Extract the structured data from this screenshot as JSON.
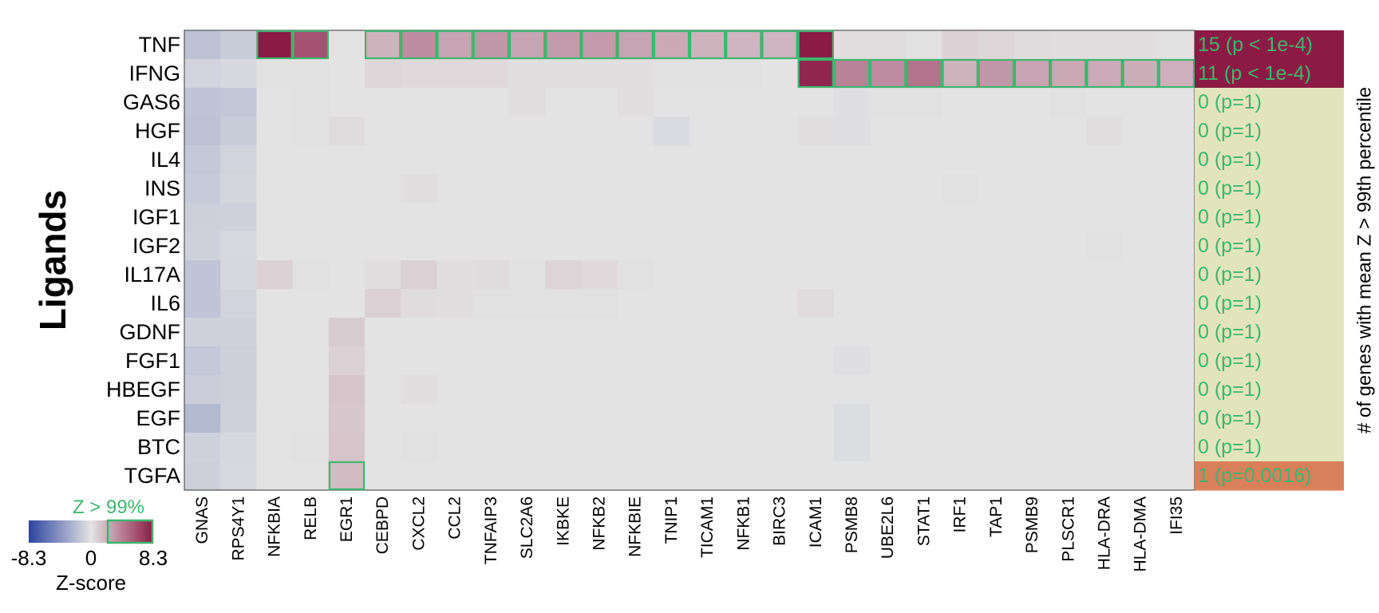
{
  "chart_data": {
    "type": "heatmap",
    "title": "",
    "ylabel": "Ligands",
    "side_label": "# of genes with mean Z > 99th percentile",
    "rows": [
      "TNF",
      "IFNG",
      "GAS6",
      "HGF",
      "IL4",
      "INS",
      "IGF1",
      "IGF2",
      "IL17A",
      "IL6",
      "GDNF",
      "FGF1",
      "HBEGF",
      "EGF",
      "BTC",
      "TGFA"
    ],
    "columns": [
      "GNAS",
      "RPS4Y1",
      "NFKBIA",
      "RELB",
      "EGR1",
      "CEBPD",
      "CXCL2",
      "CCL2",
      "TNFAIP3",
      "SLC2A6",
      "IKBKE",
      "NFKB2",
      "NFKBIE",
      "TNIP1",
      "TICAM1",
      "NFKB1",
      "BIRC3",
      "ICAM1",
      "PSMB8",
      "UBE2L6",
      "STAT1",
      "IRF1",
      "TAP1",
      "PSMB9",
      "PLSCR1",
      "HLA-DRA",
      "HLA-DMA",
      "IFI35"
    ],
    "values": [
      [
        -1.8,
        -1.2,
        8.3,
        6.0,
        0.0,
        2.0,
        3.5,
        2.6,
        3.2,
        2.6,
        3.0,
        3.0,
        2.6,
        2.4,
        2.0,
        1.9,
        1.9,
        8.3,
        0.2,
        0.2,
        0.1,
        0.7,
        0.5,
        0.3,
        0.2,
        0.2,
        0.2,
        0.1
      ],
      [
        -0.8,
        -0.6,
        0.1,
        0.1,
        0.0,
        0.5,
        0.4,
        0.4,
        0.4,
        0.2,
        0.2,
        0.2,
        0.2,
        0.1,
        0.1,
        0.1,
        0.0,
        7.8,
        4.0,
        3.6,
        4.6,
        2.0,
        3.2,
        2.6,
        2.4,
        2.3,
        2.2,
        2.1
      ],
      [
        -1.6,
        -1.5,
        0.0,
        0.1,
        0.0,
        0.0,
        0.0,
        0.0,
        0.0,
        0.2,
        0.0,
        0.0,
        0.2,
        0.0,
        0.0,
        0.0,
        0.0,
        0.0,
        -0.2,
        -0.1,
        0.1,
        0.0,
        0.0,
        0.0,
        -0.1,
        0.0,
        0.0,
        0.0
      ],
      [
        -1.8,
        -1.2,
        0.0,
        0.1,
        0.3,
        0.0,
        0.0,
        0.0,
        0.0,
        0.0,
        0.0,
        0.0,
        0.0,
        -0.4,
        0.0,
        0.0,
        0.0,
        0.2,
        -0.2,
        0.0,
        0.0,
        0.0,
        0.0,
        0.0,
        0.0,
        0.2,
        0.0,
        0.0
      ],
      [
        -1.4,
        -0.8,
        0.0,
        0.0,
        0.0,
        0.0,
        0.0,
        0.0,
        0.0,
        0.0,
        0.0,
        0.0,
        0.0,
        0.0,
        0.0,
        0.0,
        0.0,
        0.0,
        0.0,
        0.0,
        0.0,
        0.0,
        0.0,
        0.0,
        0.0,
        0.0,
        0.0,
        0.0
      ],
      [
        -1.3,
        -0.7,
        0.0,
        0.0,
        0.0,
        0.0,
        0.2,
        0.0,
        0.0,
        0.0,
        0.0,
        0.0,
        0.0,
        0.0,
        0.0,
        0.0,
        0.0,
        0.0,
        0.0,
        0.0,
        0.0,
        0.1,
        0.0,
        0.0,
        0.0,
        0.0,
        0.0,
        0.0
      ],
      [
        -1.0,
        -0.9,
        0.0,
        0.0,
        0.0,
        0.0,
        0.0,
        0.0,
        0.0,
        0.0,
        0.0,
        0.0,
        0.0,
        0.0,
        0.0,
        0.0,
        0.0,
        0.0,
        0.0,
        0.0,
        0.0,
        0.0,
        0.0,
        0.0,
        0.0,
        0.0,
        0.0,
        0.0
      ],
      [
        -0.9,
        -0.5,
        0.0,
        0.0,
        0.0,
        0.0,
        0.0,
        0.0,
        0.0,
        0.0,
        0.0,
        0.0,
        0.0,
        0.0,
        0.0,
        0.0,
        0.0,
        0.0,
        0.0,
        0.0,
        0.0,
        0.0,
        0.0,
        0.0,
        0.0,
        0.1,
        0.0,
        0.0
      ],
      [
        -1.6,
        -0.6,
        0.7,
        0.1,
        0.0,
        0.2,
        0.8,
        0.2,
        0.3,
        0.1,
        0.6,
        0.4,
        0.1,
        0.0,
        0.0,
        0.0,
        0.0,
        0.0,
        0.0,
        0.0,
        0.0,
        0.0,
        0.0,
        0.0,
        0.0,
        0.0,
        0.0,
        0.0
      ],
      [
        -1.6,
        -0.8,
        0.0,
        0.0,
        0.0,
        0.8,
        0.3,
        0.2,
        0.1,
        0.1,
        0.1,
        0.1,
        0.0,
        0.0,
        0.0,
        0.0,
        0.0,
        0.3,
        0.0,
        0.0,
        0.0,
        0.0,
        0.0,
        0.0,
        0.0,
        0.0,
        0.0,
        0.0
      ],
      [
        -0.9,
        -0.9,
        0.0,
        0.0,
        1.0,
        0.0,
        0.0,
        0.0,
        0.0,
        0.0,
        0.0,
        0.0,
        0.0,
        0.0,
        0.0,
        0.0,
        0.0,
        0.0,
        0.0,
        0.0,
        0.0,
        0.0,
        0.0,
        0.0,
        0.0,
        0.0,
        0.0,
        0.0
      ],
      [
        -1.4,
        -1.0,
        0.0,
        0.0,
        0.8,
        0.0,
        0.0,
        0.0,
        0.0,
        0.0,
        0.0,
        0.0,
        0.0,
        0.0,
        0.0,
        0.0,
        0.0,
        0.0,
        -0.2,
        0.0,
        0.0,
        0.0,
        0.0,
        0.0,
        0.0,
        0.0,
        0.0,
        0.0
      ],
      [
        -1.1,
        -1.0,
        0.0,
        0.0,
        1.2,
        0.0,
        0.2,
        0.0,
        0.0,
        0.0,
        0.0,
        0.0,
        0.0,
        0.0,
        0.0,
        0.0,
        0.0,
        0.0,
        0.0,
        0.0,
        0.0,
        0.0,
        0.0,
        0.0,
        0.0,
        0.0,
        0.0,
        0.0
      ],
      [
        -2.2,
        -0.9,
        0.0,
        0.0,
        1.1,
        0.0,
        0.0,
        0.0,
        0.0,
        0.0,
        0.0,
        0.0,
        0.0,
        0.0,
        0.0,
        0.0,
        0.0,
        0.0,
        -0.3,
        0.0,
        0.0,
        0.0,
        0.0,
        0.0,
        0.0,
        0.0,
        0.0,
        0.0
      ],
      [
        -0.9,
        -0.6,
        0.0,
        0.1,
        1.3,
        0.0,
        0.1,
        0.0,
        0.0,
        0.0,
        0.0,
        0.0,
        0.0,
        0.0,
        0.0,
        0.0,
        0.0,
        0.0,
        -0.3,
        0.0,
        0.0,
        0.0,
        0.0,
        0.0,
        0.0,
        0.0,
        0.0,
        0.0
      ],
      [
        -1.0,
        -0.5,
        0.0,
        0.0,
        1.6,
        0.0,
        0.0,
        0.0,
        0.0,
        0.0,
        0.0,
        0.0,
        0.0,
        0.0,
        0.0,
        0.0,
        0.0,
        0.0,
        0.0,
        0.0,
        0.0,
        0.0,
        0.0,
        0.0,
        0.0,
        0.0,
        0.0,
        0.0
      ]
    ],
    "highlighted": [
      {
        "row": "TNF",
        "columns": [
          "NFKBIA",
          "RELB",
          "CEBPD",
          "CXCL2",
          "CCL2",
          "TNFAIP3",
          "SLC2A6",
          "IKBKE",
          "NFKB2",
          "NFKBIE",
          "TNIP1",
          "TICAM1",
          "NFKB1",
          "BIRC3",
          "ICAM1"
        ]
      },
      {
        "row": "IFNG",
        "columns": [
          "ICAM1",
          "PSMB8",
          "UBE2L6",
          "STAT1",
          "IRF1",
          "TAP1",
          "PSMB9",
          "PLSCR1",
          "HLA-DRA",
          "HLA-DMA",
          "IFI35"
        ]
      },
      {
        "row": "TGFA",
        "columns": [
          "EGR1"
        ]
      }
    ],
    "summary": [
      {
        "row": "TNF",
        "label": "15 (p < 1e-4)",
        "color": "#8b1a44"
      },
      {
        "row": "IFNG",
        "label": "11 (p < 1e-4)",
        "color": "#8b1a44"
      },
      {
        "row": "GAS6",
        "label": "0 (p=1)",
        "color": "#e2e5bb"
      },
      {
        "row": "HGF",
        "label": "0 (p=1)",
        "color": "#e2e5bb"
      },
      {
        "row": "IL4",
        "label": "0 (p=1)",
        "color": "#e2e5bb"
      },
      {
        "row": "INS",
        "label": "0 (p=1)",
        "color": "#e2e5bb"
      },
      {
        "row": "IGF1",
        "label": "0 (p=1)",
        "color": "#e2e5bb"
      },
      {
        "row": "IGF2",
        "label": "0 (p=1)",
        "color": "#e2e5bb"
      },
      {
        "row": "IL17A",
        "label": "0 (p=1)",
        "color": "#e2e5bb"
      },
      {
        "row": "IL6",
        "label": "0 (p=1)",
        "color": "#e2e5bb"
      },
      {
        "row": "GDNF",
        "label": "0 (p=1)",
        "color": "#e2e5bb"
      },
      {
        "row": "FGF1",
        "label": "0 (p=1)",
        "color": "#e2e5bb"
      },
      {
        "row": "HBEGF",
        "label": "0 (p=1)",
        "color": "#e2e5bb"
      },
      {
        "row": "EGF",
        "label": "0 (p=1)",
        "color": "#e2e5bb"
      },
      {
        "row": "BTC",
        "label": "0 (p=1)",
        "color": "#e2e5bb"
      },
      {
        "row": "TGFA",
        "label": "1 (p=0.0016)",
        "color": "#d8805a"
      }
    ],
    "colorbar": {
      "min": -8.3,
      "max": 8.3,
      "tick_labels": [
        "-8.3",
        "0",
        "8.3"
      ],
      "label": "Z-score",
      "threshold_label": "Z > 99%",
      "threshold_fraction": 0.27,
      "colors": {
        "low": "#2d44a0",
        "mid": "#e3e3e3",
        "high": "#8b1a44"
      }
    },
    "highlight_color": "#3fb56f"
  }
}
